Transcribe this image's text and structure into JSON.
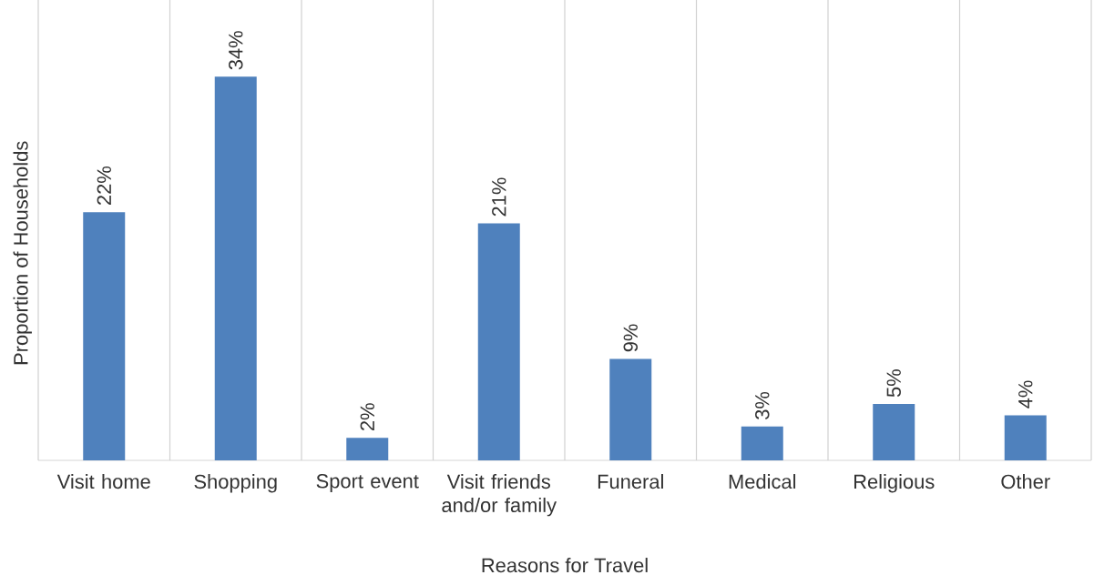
{
  "chart_data": {
    "type": "bar",
    "xlabel": "Reasons for Travel",
    "ylabel": "Proportion of Households",
    "categories": [
      "Visit home",
      "Shopping",
      "Sport event",
      "Visit friends and/or family",
      "Funeral",
      "Medical",
      "Religious",
      "Other"
    ],
    "values": [
      22,
      34,
      2,
      21,
      9,
      3,
      5,
      4
    ],
    "value_labels": [
      "22%",
      "34%",
      "2%",
      "21%",
      "9%",
      "3%",
      "5%",
      "4%"
    ],
    "color": "#4f81bd",
    "grid": "x"
  }
}
